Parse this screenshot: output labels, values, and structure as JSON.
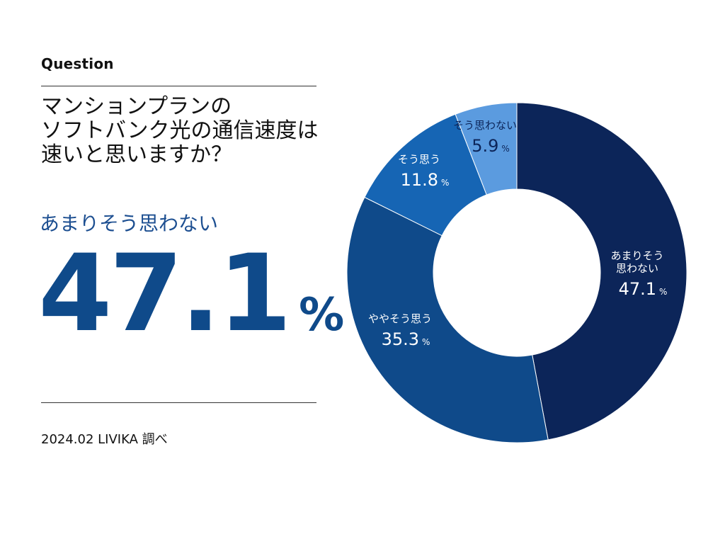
{
  "header": {
    "eyebrow": "Question",
    "question_lines": [
      "マンションプランの",
      "ソフトバンク光の通信速度は",
      "速いと思いますか？"
    ]
  },
  "highlight": {
    "label": "あまりそう思わない",
    "value": "47.1",
    "unit": "%"
  },
  "footer": {
    "source": "2024.02 LIVIKA 調べ"
  },
  "chart_data": {
    "type": "pie",
    "donut": true,
    "title": "マンションプランのソフトバンク光の通信速度は速いと思いますか？",
    "unit": "%",
    "start": "12 o'clock, clockwise",
    "slices": [
      {
        "name": "あまりそう思わない",
        "name_lines": [
          "あまりそう",
          "思わない"
        ],
        "value": 47.1,
        "value_label": "47.1",
        "color": "#0c2559",
        "label_color": "#ffffff"
      },
      {
        "name": "ややそう思う",
        "name_lines": [
          "ややそう思う"
        ],
        "value": 35.3,
        "value_label": "35.3",
        "color": "#0f4a8a",
        "label_color": "#ffffff"
      },
      {
        "name": "そう思う",
        "name_lines": [
          "そう思う"
        ],
        "value": 11.8,
        "value_label": "11.8",
        "color": "#1665b4",
        "label_color": "#ffffff"
      },
      {
        "name": "そう思わない",
        "name_lines": [
          "そう思わない"
        ],
        "value": 5.9,
        "value_label": "5.9",
        "color": "#5b9bdf",
        "label_color": "#0c2559"
      }
    ]
  }
}
